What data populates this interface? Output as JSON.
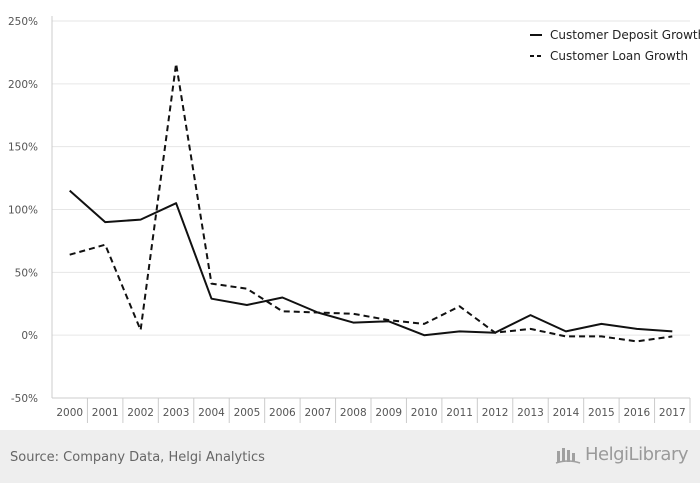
{
  "chart_data": {
    "type": "line",
    "title": "",
    "xlabel": "",
    "ylabel": "",
    "categories": [
      "2000",
      "2001",
      "2002",
      "2003",
      "2004",
      "2005",
      "2006",
      "2007",
      "2008",
      "2009",
      "2010",
      "2011",
      "2012",
      "2013",
      "2014",
      "2015",
      "2016",
      "2017"
    ],
    "ylim": [
      -50,
      250
    ],
    "yticks": [
      -50,
      0,
      50,
      100,
      150,
      200,
      250
    ],
    "ytick_labels": [
      "-50%",
      "0%",
      "50%",
      "100%",
      "150%",
      "200%",
      "250%"
    ],
    "grid": true,
    "legend_position": "top-right",
    "series": [
      {
        "name": "Customer Deposit Growth",
        "style": "solid",
        "color": "#111111",
        "values": [
          115,
          90,
          92,
          105,
          29,
          24,
          30,
          18,
          10,
          11,
          0,
          3,
          2,
          16,
          3,
          9,
          5,
          3
        ]
      },
      {
        "name": "Customer Loan Growth",
        "style": "dashed",
        "color": "#111111",
        "values": [
          64,
          72,
          4,
          216,
          41,
          37,
          19,
          18,
          17,
          12,
          9,
          23,
          2,
          5,
          -1,
          -1,
          -5,
          -1
        ]
      }
    ]
  },
  "footer": {
    "source": "Source: Company Data, Helgi Analytics",
    "brand": "HelgiLibrary"
  }
}
